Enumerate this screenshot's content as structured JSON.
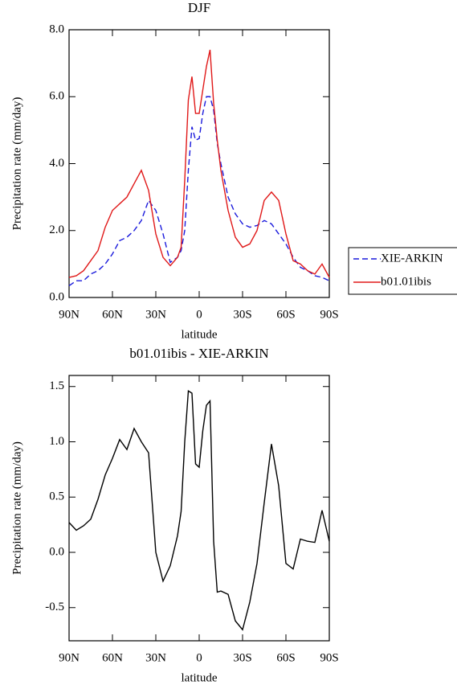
{
  "chart_data": [
    {
      "type": "line",
      "title": "DJF",
      "xlabel": "latitude",
      "ylabel": "Precipitation rate (mm/day)",
      "x": [
        90,
        85,
        80,
        75,
        70,
        65,
        60,
        55,
        50,
        45,
        40,
        35,
        30,
        25,
        20,
        15,
        12.5,
        10,
        7.5,
        5,
        2.5,
        0,
        -2.5,
        -5,
        -7.5,
        -10,
        -12.5,
        -15,
        -20,
        -25,
        -30,
        -35,
        -40,
        -45,
        -50,
        -55,
        -60,
        -65,
        -70,
        -75,
        -80,
        -85,
        -90
      ],
      "xlim": [
        90,
        -90
      ],
      "xticks": [
        {
          "value": 90,
          "label": "90N"
        },
        {
          "value": 60,
          "label": "60N"
        },
        {
          "value": 30,
          "label": "30N"
        },
        0,
        {
          "value": -30,
          "label": "30S"
        },
        {
          "value": -60,
          "label": "60S"
        },
        {
          "value": -90,
          "label": "90S"
        }
      ],
      "ylim": [
        0,
        8
      ],
      "yticks": [
        {
          "value": 0,
          "label": "0.0"
        },
        {
          "value": 2,
          "label": "2.0"
        },
        {
          "value": 4,
          "label": "4.0"
        },
        {
          "value": 6,
          "label": "6.0"
        },
        {
          "value": 8,
          "label": "8.0"
        }
      ],
      "legend": "right",
      "series": [
        {
          "name": "XIE-ARKIN",
          "color": "#1a1adc",
          "linestyle": "dashed",
          "values": [
            0.35,
            0.5,
            0.5,
            0.7,
            0.8,
            1.0,
            1.3,
            1.7,
            1.8,
            2.0,
            2.3,
            2.9,
            2.6,
            1.9,
            1.05,
            1.2,
            1.4,
            2.0,
            3.8,
            5.1,
            4.7,
            4.75,
            5.5,
            6.0,
            6.0,
            5.6,
            4.6,
            4.0,
            3.0,
            2.5,
            2.2,
            2.1,
            2.15,
            2.3,
            2.2,
            1.9,
            1.6,
            1.2,
            0.9,
            0.8,
            0.65,
            0.6,
            0.5
          ]
        },
        {
          "name": "b01.01ibis",
          "color": "#e01818",
          "linestyle": "solid",
          "values": [
            0.6,
            0.65,
            0.8,
            1.1,
            1.4,
            2.1,
            2.6,
            2.8,
            3.0,
            3.4,
            3.8,
            3.2,
            1.9,
            1.2,
            0.95,
            1.2,
            1.5,
            3.5,
            5.9,
            6.6,
            5.5,
            5.5,
            6.2,
            6.9,
            7.4,
            5.8,
            4.7,
            3.8,
            2.6,
            1.8,
            1.5,
            1.6,
            2.0,
            2.9,
            3.15,
            2.9,
            1.9,
            1.1,
            1.0,
            0.8,
            0.7,
            1.0,
            0.6
          ]
        }
      ]
    },
    {
      "type": "line",
      "title": "b01.01ibis - XIE-ARKIN",
      "xlabel": "latitude",
      "ylabel": "Precipitation rate (mm/day)",
      "x": [
        90,
        85,
        80,
        75,
        70,
        65,
        60,
        55,
        50,
        45,
        40,
        35,
        30,
        25,
        20,
        15,
        12.5,
        10,
        7.5,
        5,
        2.5,
        0,
        -2.5,
        -5,
        -7.5,
        -10,
        -12.5,
        -15,
        -20,
        -25,
        -30,
        -35,
        -40,
        -45,
        -50,
        -55,
        -60,
        -65,
        -70,
        -75,
        -80,
        -85,
        -90
      ],
      "xlim": [
        90,
        -90
      ],
      "xticks": [
        {
          "value": 90,
          "label": "90N"
        },
        {
          "value": 60,
          "label": "60N"
        },
        {
          "value": 30,
          "label": "30N"
        },
        0,
        {
          "value": -30,
          "label": "30S"
        },
        {
          "value": -60,
          "label": "60S"
        },
        {
          "value": -90,
          "label": "90S"
        }
      ],
      "ylim": [
        -0.8,
        1.6
      ],
      "yticks": [
        -0.5,
        {
          "value": 0,
          "label": "0.0"
        },
        0.5,
        {
          "value": 1,
          "label": "1.0"
        },
        1.5
      ],
      "series": [
        {
          "color": "#000000",
          "linestyle": "solid",
          "values": [
            0.27,
            0.2,
            0.24,
            0.3,
            0.48,
            0.7,
            0.85,
            1.02,
            0.93,
            1.12,
            1.0,
            0.9,
            0.0,
            -0.26,
            -0.12,
            0.15,
            0.37,
            1.0,
            1.46,
            1.44,
            0.8,
            0.77,
            1.1,
            1.33,
            1.37,
            0.1,
            -0.36,
            -0.35,
            -0.38,
            -0.62,
            -0.7,
            -0.45,
            -0.1,
            0.45,
            0.98,
            0.6,
            -0.1,
            -0.15,
            0.12,
            0.1,
            0.09,
            0.38,
            0.1
          ]
        }
      ]
    }
  ]
}
